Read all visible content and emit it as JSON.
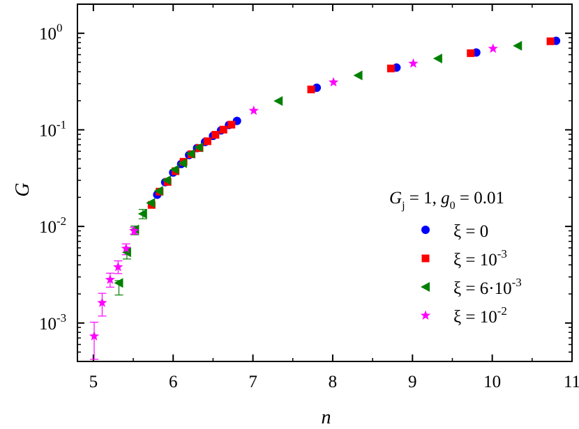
{
  "chart_data": {
    "type": "scatter",
    "title": "",
    "xlabel": "n",
    "ylabel": "G",
    "x_scale": "linear",
    "y_scale": "log",
    "xlim": [
      4.8,
      11
    ],
    "ylim": [
      0.0004,
      2
    ],
    "x_ticks": [
      "5",
      "6",
      "7",
      "8",
      "9",
      "10",
      "11"
    ],
    "y_ticks": [
      {
        "value": 0.001,
        "base": "10",
        "exp": "-3"
      },
      {
        "value": 0.01,
        "base": "10",
        "exp": "-2"
      },
      {
        "value": 0.1,
        "base": "10",
        "exp": "-1"
      },
      {
        "value": 1,
        "base": "10",
        "exp": "0"
      }
    ],
    "legend_placement": "right",
    "legend_title": {
      "G": "G",
      "G_sub": "j",
      "part1": " = 1, ",
      "g": "g",
      "g_sub": "0",
      "part2": " = 0.01"
    },
    "series": [
      {
        "name": "ξ = 0",
        "label_main": "ξ = 0",
        "label_exp": "",
        "marker": "circle",
        "color": "#0000ff",
        "points": [
          [
            5.8,
            0.0213
          ],
          [
            5.9,
            0.0287
          ],
          [
            6.0,
            0.0361
          ],
          [
            6.1,
            0.0443
          ],
          [
            6.2,
            0.0548
          ],
          [
            6.3,
            0.0647
          ],
          [
            6.4,
            0.0748
          ],
          [
            6.5,
            0.0866
          ],
          [
            6.6,
            0.0986
          ],
          [
            6.7,
            0.1122
          ],
          [
            6.8,
            0.1238
          ],
          [
            7.8,
            0.273
          ],
          [
            8.8,
            0.441
          ],
          [
            9.8,
            0.632
          ],
          [
            10.8,
            0.835
          ]
        ]
      },
      {
        "name": "ξ = 10^-3",
        "label_main": "ξ = 10",
        "label_exp": "-3",
        "marker": "square",
        "color": "#ff0000",
        "points": [
          [
            5.73,
            0.0167
          ],
          [
            5.83,
            0.0229
          ],
          [
            5.93,
            0.0289
          ],
          [
            6.03,
            0.0373
          ],
          [
            6.13,
            0.0467
          ],
          [
            6.23,
            0.0559
          ],
          [
            6.33,
            0.0648
          ],
          [
            6.43,
            0.0762
          ],
          [
            6.53,
            0.0889
          ],
          [
            6.63,
            0.1005
          ],
          [
            6.73,
            0.1131
          ],
          [
            7.73,
            0.262
          ],
          [
            8.73,
            0.432
          ],
          [
            9.73,
            0.622
          ],
          [
            10.73,
            0.826
          ]
        ]
      },
      {
        "name": "ξ = 6·10^-3",
        "label_main": "ξ = 6·10",
        "label_exp": "-3",
        "marker": "triangle-left",
        "color": "#008000",
        "points": [
          [
            5.32,
            0.0026
          ],
          [
            5.42,
            0.0054
          ],
          [
            5.52,
            0.0093
          ],
          [
            5.62,
            0.0135
          ],
          [
            5.72,
            0.0175
          ],
          [
            5.82,
            0.0233
          ],
          [
            5.92,
            0.0301
          ],
          [
            6.02,
            0.0388
          ],
          [
            6.12,
            0.0451
          ],
          [
            6.22,
            0.0566
          ],
          [
            6.32,
            0.0658
          ],
          [
            7.32,
            0.199
          ],
          [
            8.32,
            0.366
          ],
          [
            9.32,
            0.548
          ],
          [
            10.32,
            0.742
          ]
        ],
        "error_bars": [
          [
            5.32,
            0.00195,
            0.00275
          ],
          [
            5.42,
            0.0046,
            0.006
          ],
          [
            5.52,
            0.0082,
            0.0101
          ],
          [
            5.62,
            0.012,
            0.015
          ]
        ]
      },
      {
        "name": "ξ = 10^-2",
        "label_main": "ξ = 10",
        "label_exp": "-2",
        "marker": "star",
        "color": "#ff00ff",
        "points": [
          [
            5.01,
            0.00073
          ],
          [
            5.11,
            0.00162
          ],
          [
            5.21,
            0.00281
          ],
          [
            5.31,
            0.0038
          ],
          [
            5.41,
            0.0059
          ],
          [
            5.51,
            0.009
          ],
          [
            7.01,
            0.158
          ],
          [
            8.01,
            0.311
          ],
          [
            9.01,
            0.486
          ],
          [
            10.01,
            0.693
          ]
        ],
        "error_bars": [
          [
            5.01,
            0.00042,
            0.00102
          ],
          [
            5.11,
            0.00118,
            0.00203
          ],
          [
            5.21,
            0.00235,
            0.00328
          ],
          [
            5.31,
            0.00325,
            0.0044
          ],
          [
            5.41,
            0.0051,
            0.0066
          ],
          [
            5.51,
            0.0083,
            0.0098
          ]
        ]
      }
    ]
  }
}
